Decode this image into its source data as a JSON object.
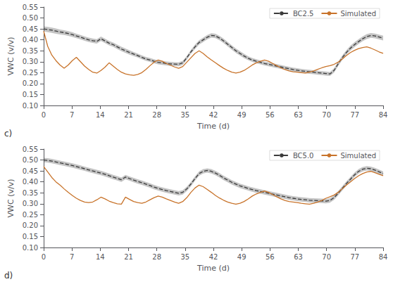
{
  "chart_data": [
    {
      "type": "line",
      "xlabel": "Time (d)",
      "ylabel": "VWC (v/v)",
      "annotations": [
        "c)"
      ],
      "x": [
        0,
        1.012,
        2.0241,
        3.0361,
        4.0482,
        5.0602,
        6.0723,
        7.0843,
        8.0964,
        9.1084,
        10.1205,
        11.1325,
        12.1446,
        13.1566,
        14.1687,
        15.1807,
        16.1928,
        17.2048,
        18.2169,
        19.2289,
        20.241,
        21.253,
        22.2651,
        23.2771,
        24.2892,
        25.3012,
        26.3133,
        27.3253,
        28.3373,
        29.3494,
        30.3614,
        31.3735,
        32.3855,
        33.3976,
        34.4096,
        35.4217,
        36.4337,
        37.4458,
        38.4578,
        39.4699,
        40.4819,
        41.494,
        42.506,
        43.5181,
        44.5301,
        45.5422,
        46.5542,
        47.5663,
        48.5783,
        49.5904,
        50.6024,
        51.6145,
        52.6265,
        53.6386,
        54.6506,
        55.6627,
        56.6747,
        57.6867,
        58.6988,
        59.7108,
        60.7229,
        61.7349,
        62.747,
        63.759,
        64.7711,
        65.7831,
        66.7952,
        67.8072,
        68.8193,
        69.8313,
        70.8434,
        71.8554,
        72.8675,
        73.8795,
        74.8916,
        75.9036,
        76.9157,
        77.9277,
        78.9398,
        79.9518,
        80.9639,
        81.9759,
        82.988,
        84
      ],
      "xlim": [
        0,
        84
      ],
      "xticks": [
        0,
        7,
        14,
        21,
        28,
        35,
        42,
        49,
        56,
        63,
        70,
        77,
        84
      ],
      "ylim": [
        0.1,
        0.55
      ],
      "yticks": [
        {
          "value": 0.1,
          "label": "0.10"
        },
        0.15,
        {
          "value": 0.2,
          "label": "0.20"
        },
        0.25,
        {
          "value": 0.3,
          "label": "0.30"
        },
        0.35,
        {
          "value": 0.4,
          "label": "0.40"
        },
        0.45,
        {
          "value": 0.5,
          "label": "0.50"
        },
        0.55
      ],
      "grid": false,
      "legend": "upper right",
      "series": [
        {
          "name": "BC2.5",
          "color": "#3a3a3a",
          "line_style": "dashed",
          "values": [
            0.45,
            0.447,
            0.444,
            0.44,
            0.436,
            0.433,
            0.429,
            0.424,
            0.418,
            0.412,
            0.406,
            0.4,
            0.396,
            0.393,
            0.405,
            0.395,
            0.385,
            0.378,
            0.368,
            0.358,
            0.35,
            0.342,
            0.335,
            0.328,
            0.32,
            0.313,
            0.308,
            0.302,
            0.297,
            0.295,
            0.292,
            0.29,
            0.289,
            0.288,
            0.295,
            0.318,
            0.345,
            0.368,
            0.388,
            0.4,
            0.412,
            0.42,
            0.418,
            0.408,
            0.395,
            0.38,
            0.365,
            0.35,
            0.338,
            0.326,
            0.316,
            0.308,
            0.302,
            0.297,
            0.292,
            0.288,
            0.284,
            0.28,
            0.276,
            0.272,
            0.268,
            0.264,
            0.261,
            0.258,
            0.256,
            0.254,
            0.252,
            0.25,
            0.248,
            0.246,
            0.244,
            0.26,
            0.29,
            0.318,
            0.342,
            0.362,
            0.378,
            0.392,
            0.405,
            0.415,
            0.42,
            0.418,
            0.413,
            0.408
          ],
          "error": [
            0.012,
            0.012,
            0.012,
            0.012,
            0.011,
            0.011,
            0.011,
            0.011,
            0.01,
            0.01,
            0.01,
            0.01,
            0.01,
            0.01,
            0.01,
            0.01,
            0.01,
            0.01,
            0.01,
            0.01,
            0.01,
            0.01,
            0.009,
            0.009,
            0.009,
            0.009,
            0.009,
            0.009,
            0.009,
            0.009,
            0.009,
            0.009,
            0.009,
            0.009,
            0.009,
            0.009,
            0.009,
            0.01,
            0.01,
            0.01,
            0.01,
            0.01,
            0.01,
            0.01,
            0.01,
            0.01,
            0.01,
            0.01,
            0.01,
            0.01,
            0.009,
            0.009,
            0.009,
            0.009,
            0.009,
            0.009,
            0.009,
            0.009,
            0.009,
            0.009,
            0.009,
            0.009,
            0.009,
            0.009,
            0.009,
            0.009,
            0.009,
            0.009,
            0.009,
            0.009,
            0.009,
            0.01,
            0.01,
            0.01,
            0.01,
            0.011,
            0.011,
            0.011,
            0.011,
            0.011,
            0.011,
            0.011,
            0.011,
            0.011
          ]
        },
        {
          "name": "Simulated",
          "color": "#C8732A",
          "line_style": "solid",
          "values": [
            0.44,
            0.37,
            0.33,
            0.305,
            0.285,
            0.27,
            0.285,
            0.305,
            0.32,
            0.3,
            0.28,
            0.265,
            0.252,
            0.248,
            0.26,
            0.275,
            0.295,
            0.28,
            0.265,
            0.252,
            0.244,
            0.24,
            0.238,
            0.242,
            0.25,
            0.265,
            0.282,
            0.298,
            0.308,
            0.302,
            0.292,
            0.284,
            0.276,
            0.27,
            0.278,
            0.298,
            0.318,
            0.338,
            0.35,
            0.338,
            0.322,
            0.308,
            0.295,
            0.282,
            0.27,
            0.26,
            0.252,
            0.248,
            0.252,
            0.26,
            0.272,
            0.285,
            0.295,
            0.302,
            0.308,
            0.302,
            0.292,
            0.282,
            0.272,
            0.264,
            0.258,
            0.254,
            0.252,
            0.25,
            0.248,
            0.252,
            0.258,
            0.265,
            0.272,
            0.278,
            0.282,
            0.288,
            0.298,
            0.312,
            0.328,
            0.342,
            0.352,
            0.36,
            0.365,
            0.368,
            0.362,
            0.354,
            0.345,
            0.338
          ]
        }
      ]
    },
    {
      "type": "line",
      "xlabel": "Time (d)",
      "ylabel": "VWC (v/v)",
      "annotations": [
        "d)"
      ],
      "x": [
        0,
        1.012,
        2.0241,
        3.0361,
        4.0482,
        5.0602,
        6.0723,
        7.0843,
        8.0964,
        9.1084,
        10.1205,
        11.1325,
        12.1446,
        13.1566,
        14.1687,
        15.1807,
        16.1928,
        17.2048,
        18.2169,
        19.2289,
        20.241,
        21.253,
        22.2651,
        23.2771,
        24.2892,
        25.3012,
        26.3133,
        27.3253,
        28.3373,
        29.3494,
        30.3614,
        31.3735,
        32.3855,
        33.3976,
        34.4096,
        35.4217,
        36.4337,
        37.4458,
        38.4578,
        39.4699,
        40.4819,
        41.494,
        42.506,
        43.5181,
        44.5301,
        45.5422,
        46.5542,
        47.5663,
        48.5783,
        49.5904,
        50.6024,
        51.6145,
        52.6265,
        53.6386,
        54.6506,
        55.6627,
        56.6747,
        57.6867,
        58.6988,
        59.7108,
        60.7229,
        61.7349,
        62.747,
        63.759,
        64.7711,
        65.7831,
        66.7952,
        67.8072,
        68.8193,
        69.8313,
        70.8434,
        71.8554,
        72.8675,
        73.8795,
        74.8916,
        75.9036,
        76.9157,
        77.9277,
        78.9398,
        79.9518,
        80.9639,
        81.9759,
        82.988,
        84
      ],
      "xlim": [
        0,
        84
      ],
      "xticks": [
        0,
        7,
        14,
        21,
        28,
        35,
        42,
        49,
        56,
        63,
        70,
        77,
        84
      ],
      "ylim": [
        0.1,
        0.55
      ],
      "yticks": [
        {
          "value": 0.1,
          "label": "0.10"
        },
        0.15,
        {
          "value": 0.2,
          "label": "0.20"
        },
        0.25,
        {
          "value": 0.3,
          "label": "0.30"
        },
        0.35,
        {
          "value": 0.4,
          "label": "0.40"
        },
        0.45,
        {
          "value": 0.5,
          "label": "0.50"
        },
        0.55
      ],
      "grid": false,
      "legend": "upper right",
      "series": [
        {
          "name": "BC5.0",
          "color": "#3a3a3a",
          "line_style": "dashed",
          "values": [
            0.5,
            0.498,
            0.495,
            0.491,
            0.487,
            0.483,
            0.479,
            0.475,
            0.47,
            0.465,
            0.46,
            0.455,
            0.45,
            0.445,
            0.44,
            0.435,
            0.428,
            0.422,
            0.416,
            0.41,
            0.422,
            0.415,
            0.408,
            0.402,
            0.396,
            0.39,
            0.383,
            0.376,
            0.37,
            0.365,
            0.36,
            0.356,
            0.352,
            0.348,
            0.352,
            0.368,
            0.39,
            0.415,
            0.438,
            0.448,
            0.452,
            0.448,
            0.44,
            0.43,
            0.418,
            0.408,
            0.398,
            0.39,
            0.382,
            0.376,
            0.37,
            0.365,
            0.36,
            0.356,
            0.352,
            0.348,
            0.344,
            0.34,
            0.336,
            0.332,
            0.328,
            0.325,
            0.322,
            0.32,
            0.318,
            0.316,
            0.315,
            0.314,
            0.313,
            0.312,
            0.315,
            0.328,
            0.348,
            0.37,
            0.392,
            0.412,
            0.432,
            0.448,
            0.458,
            0.462,
            0.46,
            0.454,
            0.446,
            0.438
          ],
          "error": [
            0.01,
            0.01,
            0.01,
            0.01,
            0.01,
            0.01,
            0.01,
            0.01,
            0.01,
            0.01,
            0.01,
            0.01,
            0.01,
            0.01,
            0.01,
            0.01,
            0.01,
            0.01,
            0.01,
            0.01,
            0.01,
            0.01,
            0.01,
            0.01,
            0.01,
            0.01,
            0.01,
            0.01,
            0.01,
            0.01,
            0.01,
            0.01,
            0.01,
            0.01,
            0.01,
            0.01,
            0.01,
            0.01,
            0.01,
            0.01,
            0.01,
            0.01,
            0.01,
            0.01,
            0.01,
            0.01,
            0.01,
            0.01,
            0.01,
            0.01,
            0.01,
            0.01,
            0.01,
            0.01,
            0.01,
            0.01,
            0.01,
            0.01,
            0.01,
            0.01,
            0.01,
            0.01,
            0.01,
            0.01,
            0.01,
            0.01,
            0.01,
            0.01,
            0.01,
            0.01,
            0.01,
            0.01,
            0.01,
            0.01,
            0.01,
            0.01,
            0.01,
            0.01,
            0.01,
            0.01,
            0.01,
            0.01,
            0.01,
            0.01
          ]
        },
        {
          "name": "Simulated",
          "color": "#C8732A",
          "line_style": "solid",
          "values": [
            0.47,
            0.445,
            0.42,
            0.4,
            0.385,
            0.368,
            0.352,
            0.338,
            0.325,
            0.315,
            0.308,
            0.305,
            0.308,
            0.318,
            0.33,
            0.322,
            0.312,
            0.305,
            0.3,
            0.298,
            0.33,
            0.32,
            0.31,
            0.305,
            0.302,
            0.308,
            0.318,
            0.328,
            0.335,
            0.33,
            0.322,
            0.315,
            0.308,
            0.302,
            0.31,
            0.328,
            0.352,
            0.372,
            0.385,
            0.378,
            0.365,
            0.352,
            0.338,
            0.326,
            0.316,
            0.308,
            0.302,
            0.298,
            0.302,
            0.31,
            0.322,
            0.335,
            0.345,
            0.352,
            0.358,
            0.352,
            0.342,
            0.332,
            0.322,
            0.315,
            0.31,
            0.308,
            0.305,
            0.302,
            0.3,
            0.298,
            0.302,
            0.308,
            0.315,
            0.325,
            0.332,
            0.34,
            0.352,
            0.368,
            0.385,
            0.4,
            0.415,
            0.428,
            0.438,
            0.445,
            0.448,
            0.442,
            0.435,
            0.428
          ]
        }
      ]
    }
  ]
}
